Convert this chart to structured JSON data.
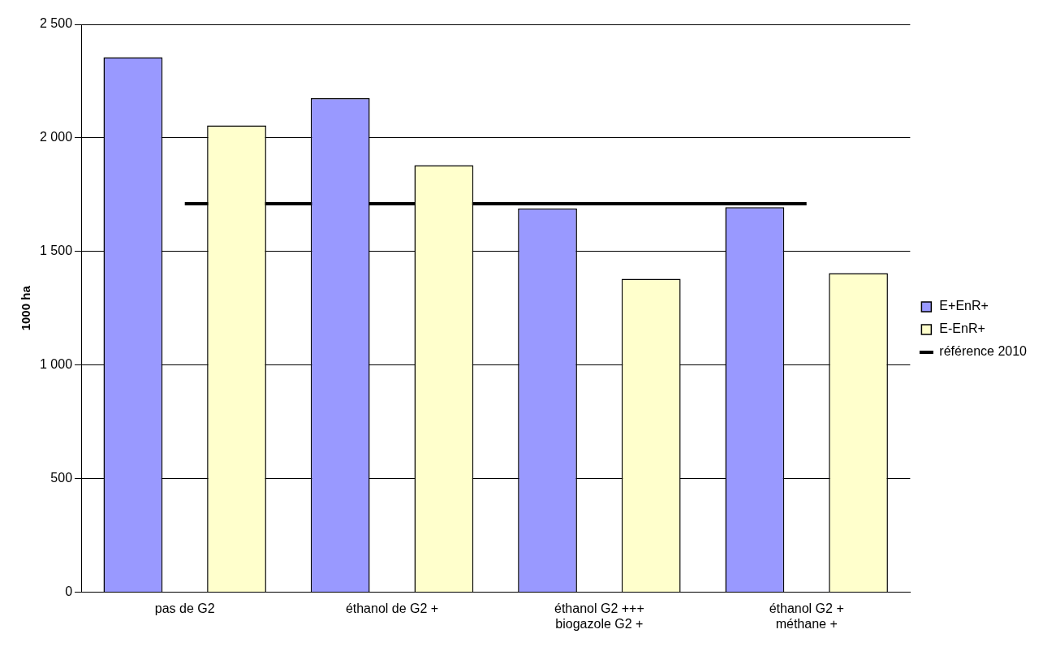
{
  "chart_data": {
    "type": "bar",
    "ylabel": "1000 ha",
    "categories": [
      "pas de G2",
      "éthanol de G2 +",
      "éthanol G2 +++\nbiogazole G2 +",
      "éthanol G2 +\nméthane +"
    ],
    "series": [
      {
        "name": "E+EnR+",
        "color": "#9999ff",
        "values": [
          2355,
          2175,
          1690,
          1695
        ]
      },
      {
        "name": "E-EnR+",
        "color": "#ffffcc",
        "values": [
          2055,
          1880,
          1380,
          1405
        ]
      },
      {
        "name": "référence 2010",
        "type": "line",
        "color": "#000000",
        "values": [
          1710,
          1710,
          1710,
          1710
        ]
      }
    ],
    "ylim": [
      0,
      2500
    ],
    "yticks": [
      {
        "value": 0,
        "label": "0"
      },
      {
        "value": 500,
        "label": "500"
      },
      {
        "value": 1000,
        "label": "1 000"
      },
      {
        "value": 1500,
        "label": "1 500"
      },
      {
        "value": 2000,
        "label": "2 000"
      },
      {
        "value": 2500,
        "label": "2 500"
      }
    ],
    "grid": "y",
    "legend": "right",
    "marker": "none"
  }
}
